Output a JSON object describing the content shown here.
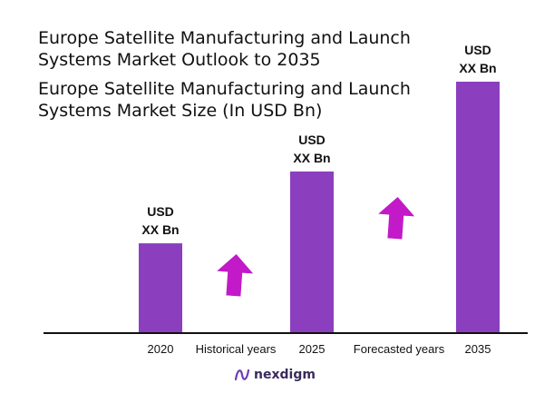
{
  "titles": {
    "outlook": "Europe Satellite Manufacturing and Launch Systems Market Outlook to 2035",
    "size": "Europe Satellite Manufacturing and Launch Systems Market Size (In USD Bn)"
  },
  "chart_data": {
    "type": "bar",
    "categories": [
      "2020",
      "2025",
      "2035"
    ],
    "values": [
      1.0,
      1.8,
      2.8
    ],
    "value_labels": [
      [
        "USD",
        "XX Bn"
      ],
      [
        "USD",
        "XX Bn"
      ],
      [
        "USD",
        "XX Bn"
      ]
    ],
    "period_labels": [
      "Historical years",
      "Forecasted years"
    ],
    "bar_color": "#8b3fbf",
    "arrow_color": "#c219c9",
    "grid": false,
    "legend": "none",
    "ylim": [
      0,
      3
    ]
  },
  "footer": {
    "logo_text": "nexdigm",
    "logo_icon": "nexdigm-wave-icon",
    "logo_color": "#6a3fb5"
  }
}
